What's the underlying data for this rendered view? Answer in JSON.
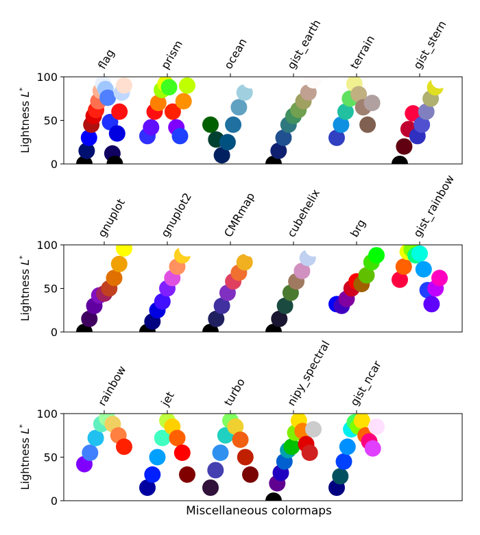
{
  "chart_data": [
    {
      "type": "scatter",
      "ylabel": "Lightness L*",
      "ylim": [
        0,
        100
      ],
      "yticks": [
        0,
        50,
        100
      ],
      "series": [
        {
          "name": "flag",
          "points": [
            {
              "y": 0,
              "c": "#000000"
            },
            {
              "y": 15,
              "c": "#001070"
            },
            {
              "y": 30,
              "c": "#0000ff"
            },
            {
              "y": 45,
              "c": "#b01010"
            },
            {
              "y": 55,
              "c": "#e00000"
            },
            {
              "y": 62,
              "c": "#ff2010"
            },
            {
              "y": 72,
              "c": "#ff7050"
            },
            {
              "y": 84,
              "c": "#ffb090"
            },
            {
              "y": 92,
              "c": "#e8f0ff"
            },
            {
              "y": 86,
              "c": "#a0c8ff"
            },
            {
              "y": 76,
              "c": "#5080ff"
            },
            {
              "y": 48,
              "c": "#2030ff"
            },
            {
              "y": 12,
              "c": "#100060"
            },
            {
              "y": 0,
              "c": "#000000"
            },
            {
              "y": 35,
              "c": "#0000e0"
            },
            {
              "y": 60,
              "c": "#ff1010"
            },
            {
              "y": 82,
              "c": "#c0d8ff"
            },
            {
              "y": 90,
              "c": "#ffe0d0"
            }
          ]
        },
        {
          "name": "prism",
          "points": [
            {
              "y": 32,
              "c": "#3030ff"
            },
            {
              "y": 42,
              "c": "#6010ff"
            },
            {
              "y": 60,
              "c": "#ff1010"
            },
            {
              "y": 70,
              "c": "#ff8000"
            },
            {
              "y": 85,
              "c": "#a0ff00"
            },
            {
              "y": 92,
              "c": "#e8ff00"
            },
            {
              "y": 88,
              "c": "#40ff20"
            },
            {
              "y": 60,
              "c": "#ff2000"
            },
            {
              "y": 42,
              "c": "#8000ff"
            },
            {
              "y": 32,
              "c": "#2040ff"
            },
            {
              "y": 72,
              "c": "#ff9000"
            },
            {
              "y": 90,
              "c": "#c0ff00"
            }
          ]
        },
        {
          "name": "ocean",
          "points": [
            {
              "y": 45,
              "c": "#006000"
            },
            {
              "y": 28,
              "c": "#004030"
            },
            {
              "y": 10,
              "c": "#002060"
            },
            {
              "y": 25,
              "c": "#005080"
            },
            {
              "y": 45,
              "c": "#2070a0"
            },
            {
              "y": 65,
              "c": "#60a0c0"
            },
            {
              "y": 82,
              "c": "#a0d0e0"
            },
            {
              "y": 96,
              "c": "#ffffff"
            }
          ]
        },
        {
          "name": "gist_earth",
          "points": [
            {
              "y": 0,
              "c": "#000000"
            },
            {
              "y": 15,
              "c": "#102070"
            },
            {
              "y": 30,
              "c": "#205090"
            },
            {
              "y": 45,
              "c": "#307880"
            },
            {
              "y": 55,
              "c": "#409060"
            },
            {
              "y": 62,
              "c": "#70a050"
            },
            {
              "y": 72,
              "c": "#a0a060"
            },
            {
              "y": 82,
              "c": "#c0a090"
            },
            {
              "y": 96,
              "c": "#fffafa"
            }
          ]
        },
        {
          "name": "terrain",
          "points": [
            {
              "y": 30,
              "c": "#3040c0"
            },
            {
              "y": 45,
              "c": "#1090e0"
            },
            {
              "y": 60,
              "c": "#20c0a0"
            },
            {
              "y": 75,
              "c": "#60e060"
            },
            {
              "y": 92,
              "c": "#f0f090"
            },
            {
              "y": 80,
              "c": "#c0b080"
            },
            {
              "y": 65,
              "c": "#a08070"
            },
            {
              "y": 45,
              "c": "#806050"
            },
            {
              "y": 70,
              "c": "#b0a0a0"
            },
            {
              "y": 96,
              "c": "#ffffff"
            }
          ]
        },
        {
          "name": "gist_stern",
          "points": [
            {
              "y": 0,
              "c": "#000000"
            },
            {
              "y": 20,
              "c": "#600010"
            },
            {
              "y": 40,
              "c": "#c00030"
            },
            {
              "y": 58,
              "c": "#ff0040"
            },
            {
              "y": 32,
              "c": "#3030c0"
            },
            {
              "y": 45,
              "c": "#5050d0"
            },
            {
              "y": 60,
              "c": "#8080c0"
            },
            {
              "y": 75,
              "c": "#b0b070"
            },
            {
              "y": 88,
              "c": "#e0e020"
            },
            {
              "y": 96,
              "c": "#ffffff"
            }
          ]
        }
      ]
    },
    {
      "type": "scatter",
      "ylabel": "Lightness L*",
      "ylim": [
        0,
        100
      ],
      "yticks": [
        0,
        50,
        100
      ],
      "series": [
        {
          "name": "gnuplot",
          "points": [
            {
              "y": 0,
              "c": "#000000"
            },
            {
              "y": 15,
              "c": "#400060"
            },
            {
              "y": 30,
              "c": "#6000a0"
            },
            {
              "y": 42,
              "c": "#8010c0"
            },
            {
              "y": 44,
              "c": "#a02060"
            },
            {
              "y": 50,
              "c": "#c04020"
            },
            {
              "y": 62,
              "c": "#e07000"
            },
            {
              "y": 78,
              "c": "#f0a000"
            },
            {
              "y": 96,
              "c": "#ffff00"
            }
          ]
        },
        {
          "name": "gnuplot2",
          "points": [
            {
              "y": 0,
              "c": "#000000"
            },
            {
              "y": 12,
              "c": "#000080"
            },
            {
              "y": 25,
              "c": "#0000e0"
            },
            {
              "y": 35,
              "c": "#4010ff"
            },
            {
              "y": 50,
              "c": "#8020ff"
            },
            {
              "y": 62,
              "c": "#e050e0"
            },
            {
              "y": 75,
              "c": "#ff9060"
            },
            {
              "y": 88,
              "c": "#ffd020"
            },
            {
              "y": 96,
              "c": "#ffffff"
            }
          ]
        },
        {
          "name": "CMRmap",
          "points": [
            {
              "y": 0,
              "c": "#000000"
            },
            {
              "y": 15,
              "c": "#202060"
            },
            {
              "y": 30,
              "c": "#4030a0"
            },
            {
              "y": 45,
              "c": "#8030c0"
            },
            {
              "y": 58,
              "c": "#e04060"
            },
            {
              "y": 68,
              "c": "#f07030"
            },
            {
              "y": 80,
              "c": "#f0b020"
            },
            {
              "y": 96,
              "c": "#ffffff"
            }
          ]
        },
        {
          "name": "cubehelix",
          "points": [
            {
              "y": 0,
              "c": "#000000"
            },
            {
              "y": 15,
              "c": "#1a1530"
            },
            {
              "y": 30,
              "c": "#1a4a40"
            },
            {
              "y": 45,
              "c": "#4a7a30"
            },
            {
              "y": 58,
              "c": "#a07a60"
            },
            {
              "y": 70,
              "c": "#d090c0"
            },
            {
              "y": 85,
              "c": "#c0d0f0"
            },
            {
              "y": 96,
              "c": "#ffffff"
            }
          ]
        },
        {
          "name": "brg",
          "points": [
            {
              "y": 32,
              "c": "#0000ff"
            },
            {
              "y": 30,
              "c": "#4000c0"
            },
            {
              "y": 38,
              "c": "#8000a0"
            },
            {
              "y": 50,
              "c": "#d00020"
            },
            {
              "y": 58,
              "c": "#ff0000"
            },
            {
              "y": 55,
              "c": "#a06000"
            },
            {
              "y": 65,
              "c": "#60c000"
            },
            {
              "y": 80,
              "c": "#40e000"
            },
            {
              "y": 88,
              "c": "#00ff00"
            }
          ]
        },
        {
          "name": "gist_rainbow",
          "points": [
            {
              "y": 60,
              "c": "#ff0040"
            },
            {
              "y": 75,
              "c": "#ff6000"
            },
            {
              "y": 92,
              "c": "#f0ff00"
            },
            {
              "y": 95,
              "c": "#80ff00"
            },
            {
              "y": 88,
              "c": "#00ff80"
            },
            {
              "y": 90,
              "c": "#00ffe0"
            },
            {
              "y": 72,
              "c": "#00a0ff"
            },
            {
              "y": 48,
              "c": "#2040ff"
            },
            {
              "y": 32,
              "c": "#6000ff"
            },
            {
              "y": 50,
              "c": "#c000ff"
            },
            {
              "y": 62,
              "c": "#ff00c0"
            }
          ]
        }
      ]
    },
    {
      "type": "scatter",
      "xlabel": "Miscellaneous colormaps",
      "ylabel": "Lightness L*",
      "ylim": [
        0,
        100
      ],
      "yticks": [
        0,
        50,
        100
      ],
      "series": [
        {
          "name": "rainbow",
          "points": [
            {
              "y": 42,
              "c": "#8000ff"
            },
            {
              "y": 55,
              "c": "#4080ff"
            },
            {
              "y": 72,
              "c": "#20c0f0"
            },
            {
              "y": 88,
              "c": "#60f0c0"
            },
            {
              "y": 95,
              "c": "#a0ffa0"
            },
            {
              "y": 88,
              "c": "#f0d060"
            },
            {
              "y": 75,
              "c": "#ff8040"
            },
            {
              "y": 62,
              "c": "#ff2000"
            }
          ]
        },
        {
          "name": "jet",
          "points": [
            {
              "y": 15,
              "c": "#0000a0"
            },
            {
              "y": 30,
              "c": "#0020ff"
            },
            {
              "y": 50,
              "c": "#00a0ff"
            },
            {
              "y": 72,
              "c": "#40ffc0"
            },
            {
              "y": 92,
              "c": "#c0ff40"
            },
            {
              "y": 85,
              "c": "#ffd000"
            },
            {
              "y": 72,
              "c": "#ff6000"
            },
            {
              "y": 55,
              "c": "#ff0000"
            },
            {
              "y": 30,
              "c": "#800000"
            }
          ]
        },
        {
          "name": "turbo",
          "points": [
            {
              "y": 15,
              "c": "#30123b"
            },
            {
              "y": 35,
              "c": "#4440b0"
            },
            {
              "y": 55,
              "c": "#3090f0"
            },
            {
              "y": 75,
              "c": "#20d0c0"
            },
            {
              "y": 92,
              "c": "#80ff60"
            },
            {
              "y": 85,
              "c": "#f0d030"
            },
            {
              "y": 70,
              "c": "#f06010"
            },
            {
              "y": 50,
              "c": "#c02000"
            },
            {
              "y": 30,
              "c": "#7a0403"
            }
          ]
        },
        {
          "name": "nipy_spectral",
          "points": [
            {
              "y": 0,
              "c": "#000000"
            },
            {
              "y": 20,
              "c": "#600090"
            },
            {
              "y": 32,
              "c": "#2000c0"
            },
            {
              "y": 45,
              "c": "#0060d0"
            },
            {
              "y": 58,
              "c": "#00a0b0"
            },
            {
              "y": 62,
              "c": "#00c000"
            },
            {
              "y": 78,
              "c": "#80f000"
            },
            {
              "y": 92,
              "c": "#ffe000"
            },
            {
              "y": 80,
              "c": "#ff8000"
            },
            {
              "y": 65,
              "c": "#e00000"
            },
            {
              "y": 55,
              "c": "#d02020"
            },
            {
              "y": 82,
              "c": "#cccccc"
            }
          ]
        },
        {
          "name": "gist_ncar",
          "points": [
            {
              "y": 15,
              "c": "#000080"
            },
            {
              "y": 28,
              "c": "#005060"
            },
            {
              "y": 45,
              "c": "#0040ff"
            },
            {
              "y": 62,
              "c": "#0090ff"
            },
            {
              "y": 82,
              "c": "#00f0f0"
            },
            {
              "y": 90,
              "c": "#40ff60"
            },
            {
              "y": 85,
              "c": "#80ff00"
            },
            {
              "y": 92,
              "c": "#ffe000"
            },
            {
              "y": 75,
              "c": "#ff6000"
            },
            {
              "y": 68,
              "c": "#ff0080"
            },
            {
              "y": 60,
              "c": "#e040ff"
            },
            {
              "y": 85,
              "c": "#ffe0ff"
            }
          ]
        }
      ]
    }
  ]
}
